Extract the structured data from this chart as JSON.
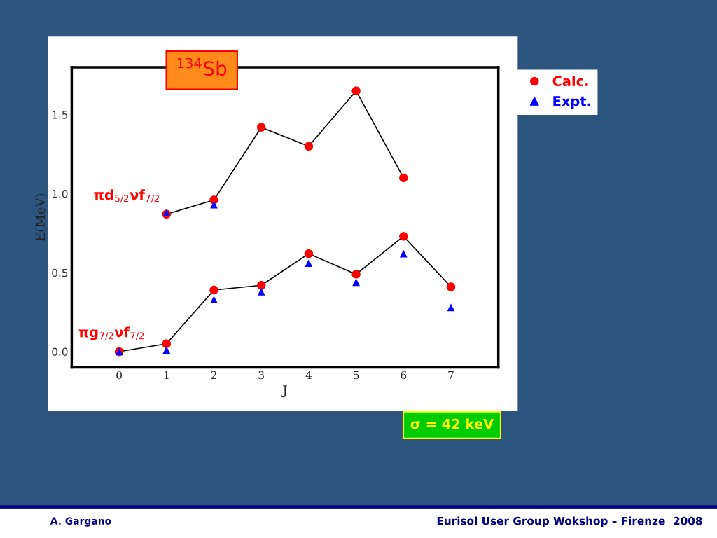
{
  "chart_data": {
    "type": "line",
    "title": "$^{134}$Sb",
    "xlabel": "J",
    "ylabel": "E(MeV)",
    "x": [
      0,
      1,
      2,
      3,
      4,
      5,
      6,
      7
    ],
    "series": [
      {
        "name": "Calc.",
        "color": "#ff0000",
        "marker": "circle",
        "values": [
          0.0,
          0.05,
          0.39,
          0.42,
          0.62,
          0.49,
          0.73,
          0.41
        ]
      },
      {
        "color": "#ff0000",
        "marker": "circle",
        "values": [
          null,
          0.87,
          0.96,
          1.42,
          1.3,
          1.65,
          1.1,
          null
        ]
      },
      {
        "name": "Expt.",
        "type": "scatter",
        "color": "#0000ff",
        "marker": "triangle",
        "values": [
          0.0,
          0.01,
          0.33,
          0.38,
          0.56,
          0.44,
          0.62,
          0.28
        ]
      },
      {
        "type": "scatter",
        "color": "#0000ff",
        "marker": "triangle",
        "values": [
          null,
          0.88,
          0.93,
          null,
          null,
          null,
          null,
          null
        ]
      }
    ],
    "xlim": [
      -1,
      8
    ],
    "xticks": [
      0,
      1,
      2,
      3,
      4,
      5,
      6,
      7
    ],
    "ylim": [
      -0.1,
      1.8
    ],
    "yticks": [
      {
        "value": 0,
        "label": "0.0"
      },
      {
        "value": 0.5,
        "label": "0.5"
      },
      {
        "value": 1.0,
        "label": "1.0"
      },
      {
        "value": 1.5,
        "label": "1.5"
      }
    ],
    "grid": false,
    "legend": "top right",
    "annotations": [
      {
        "text": "πd$_{5/2}$νf$_{7/2}$",
        "x": 1,
        "y": 0.87
      },
      {
        "text": "πg$_{7/2}$νf$_{7/2}$",
        "x": 0,
        "y": 0.0
      },
      "σ = 42 keV",
      "A. Gargano",
      "Eurisol User Group Wokshop – Firenze  2008"
    ]
  }
}
